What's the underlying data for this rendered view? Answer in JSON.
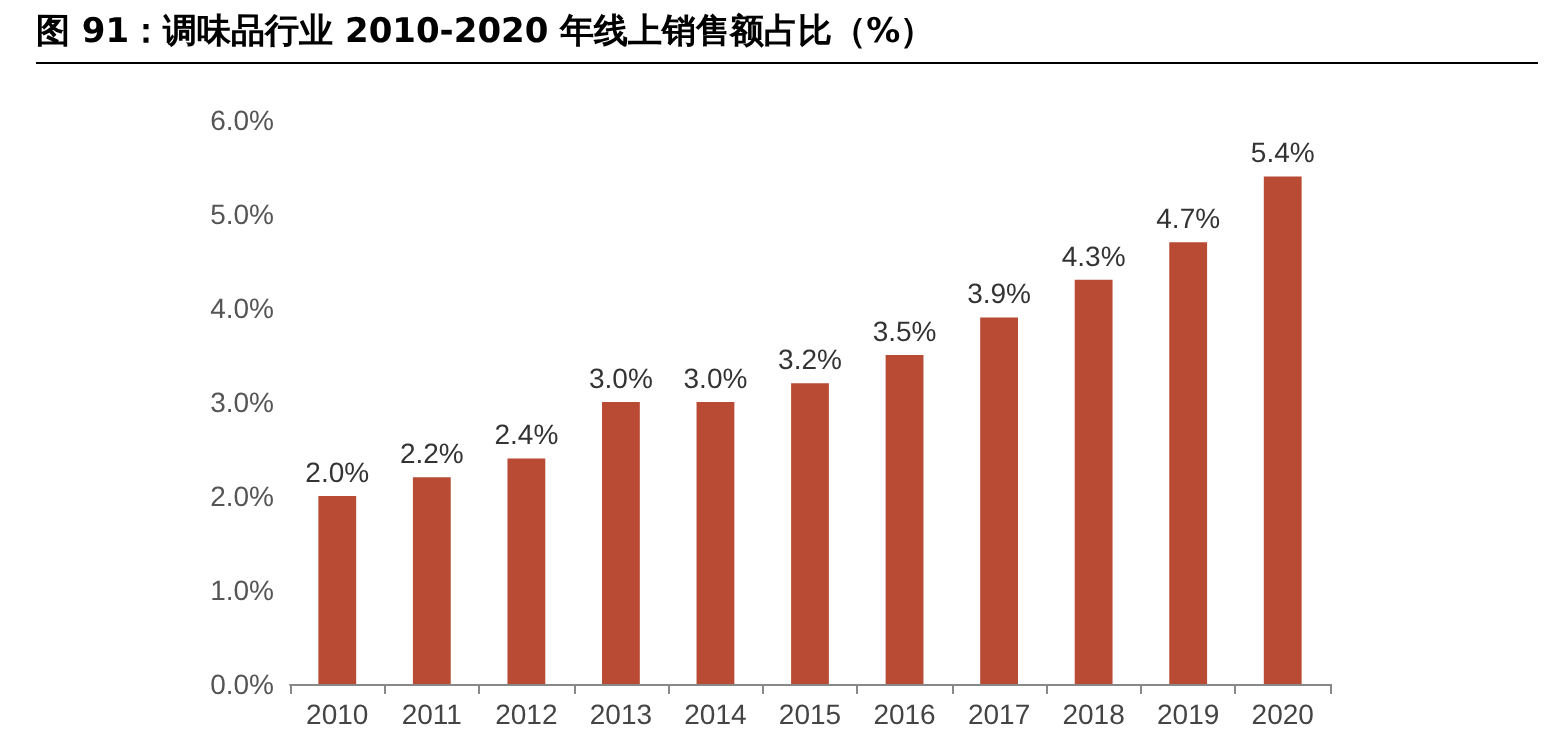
{
  "chart_data": {
    "type": "bar",
    "title": "图 91：调味品行业 2010-2020 年线上销售额占比（%）",
    "categories": [
      "2010",
      "2011",
      "2012",
      "2013",
      "2014",
      "2015",
      "2016",
      "2017",
      "2018",
      "2019",
      "2020"
    ],
    "values": [
      2.0,
      2.2,
      2.4,
      3.0,
      3.0,
      3.2,
      3.5,
      3.9,
      4.3,
      4.7,
      5.4
    ],
    "value_labels": [
      "2.0%",
      "2.2%",
      "2.4%",
      "3.0%",
      "3.0%",
      "3.2%",
      "3.5%",
      "3.9%",
      "4.3%",
      "4.7%",
      "5.4%"
    ],
    "color": "#b94a34",
    "ylim": [
      0,
      6
    ],
    "yticks": [
      {
        "value": 0,
        "label": "0.0%"
      },
      {
        "value": 1,
        "label": "1.0%"
      },
      {
        "value": 2,
        "label": "2.0%"
      },
      {
        "value": 3,
        "label": "3.0%"
      },
      {
        "value": 4,
        "label": "4.0%"
      },
      {
        "value": 5,
        "label": "5.0%"
      },
      {
        "value": 6,
        "label": "6.0%"
      }
    ],
    "grid": false
  }
}
